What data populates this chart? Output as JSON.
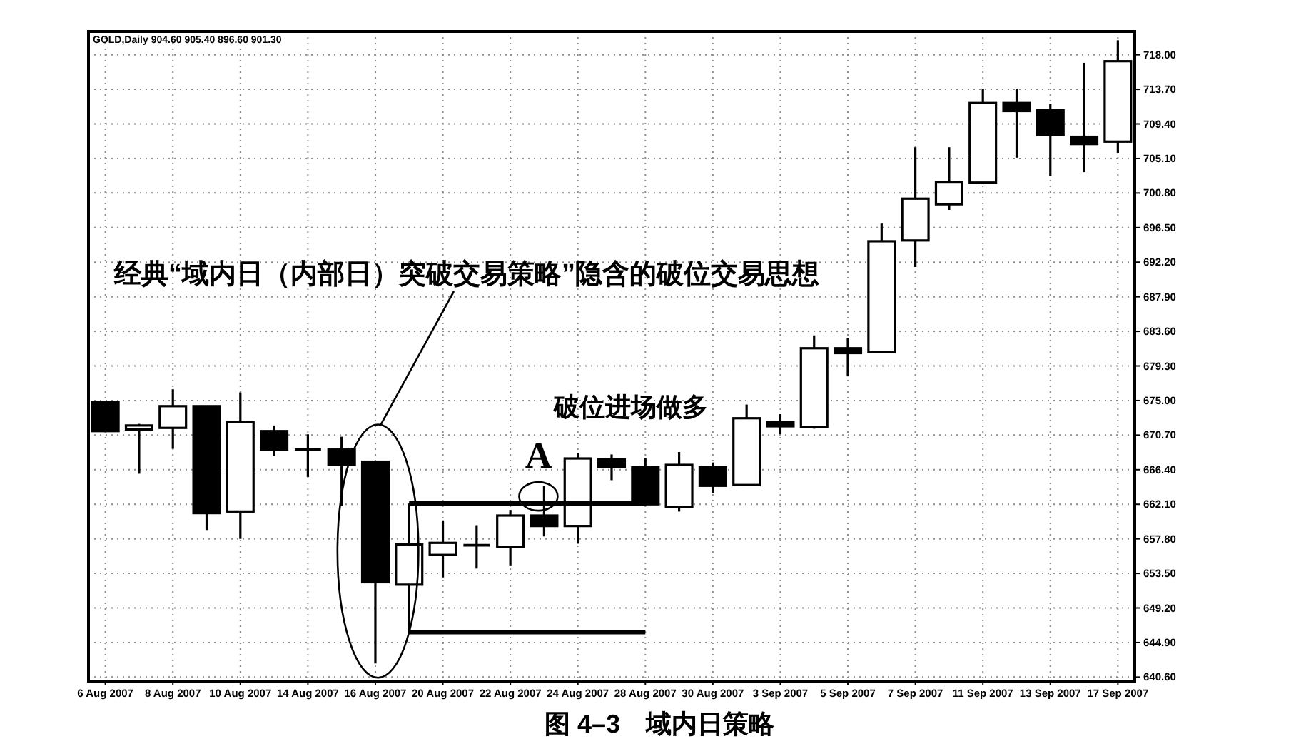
{
  "chart_data": {
    "type": "candlestick",
    "title": "图 4–3　域内日策略",
    "categories": [
      "6 Aug 2007",
      null,
      "8 Aug 2007",
      null,
      "10 Aug 2007",
      null,
      "14 Aug 2007",
      null,
      "16 Aug 2007",
      null,
      "20 Aug 2007",
      null,
      "22 Aug 2007",
      null,
      "24 Aug 2007",
      null,
      "28 Aug 2007",
      null,
      "30 Aug 2007",
      null,
      "3 Sep 2007",
      null,
      "5 Sep 2007",
      null,
      "7 Sep 2007",
      null,
      "11 Sep 2007",
      null,
      "13 Sep 2007",
      null,
      "17 Sep 2007"
    ],
    "ohlc": [
      [
        674.8,
        674.8,
        671.2,
        671.2
      ],
      [
        671.4,
        672.1,
        665.9,
        671.9
      ],
      [
        671.6,
        676.4,
        669.0,
        674.3
      ],
      [
        674.3,
        674.3,
        658.9,
        661.0
      ],
      [
        661.2,
        676.0,
        657.8,
        672.3
      ],
      [
        671.2,
        671.9,
        668.1,
        668.9
      ],
      [
        668.9,
        670.8,
        665.5,
        668.9
      ],
      [
        668.9,
        670.5,
        661.9,
        667.0
      ],
      [
        667.4,
        667.4,
        642.3,
        652.4
      ],
      [
        652.1,
        662.2,
        646.2,
        657.1
      ],
      [
        655.8,
        660.1,
        653.0,
        657.3
      ],
      [
        657.0,
        659.5,
        654.1,
        657.0
      ],
      [
        656.8,
        661.4,
        654.5,
        660.7
      ],
      [
        660.7,
        664.4,
        658.1,
        659.4
      ],
      [
        659.4,
        668.5,
        657.2,
        667.8
      ],
      [
        667.7,
        668.3,
        665.1,
        666.7
      ],
      [
        666.7,
        667.8,
        661.9,
        662.1
      ],
      [
        661.8,
        668.6,
        661.2,
        667.0
      ],
      [
        666.7,
        667.3,
        663.5,
        664.4
      ],
      [
        664.5,
        674.5,
        664.4,
        672.8
      ],
      [
        672.3,
        673.3,
        670.8,
        671.8
      ],
      [
        671.7,
        683.1,
        671.5,
        681.5
      ],
      [
        681.5,
        682.8,
        678.0,
        680.9
      ],
      [
        681.0,
        697.0,
        680.9,
        694.8
      ],
      [
        694.9,
        706.5,
        691.6,
        700.1
      ],
      [
        699.4,
        706.5,
        698.7,
        702.2
      ],
      [
        702.1,
        713.8,
        701.9,
        712.0
      ],
      [
        712.0,
        713.8,
        705.2,
        711.0
      ],
      [
        711.1,
        711.9,
        702.9,
        708.0
      ],
      [
        707.8,
        717.0,
        703.4,
        706.9
      ],
      [
        707.2,
        719.8,
        705.8,
        717.2
      ]
    ],
    "colors": [
      "#000000",
      "#ffffff",
      "#ffffff",
      "#000000",
      "#ffffff",
      "#000000",
      "#000000",
      "#000000",
      "#000000",
      "#ffffff",
      "#ffffff",
      "#000000",
      "#ffffff",
      "#000000",
      "#ffffff",
      "#000000",
      "#000000",
      "#ffffff",
      "#000000",
      "#ffffff",
      "#000000",
      "#ffffff",
      "#000000",
      "#ffffff",
      "#ffffff",
      "#ffffff",
      "#ffffff",
      "#000000",
      "#000000",
      "#000000",
      "#ffffff"
    ],
    "series": [
      {
        "type": "line",
        "color": "#000000",
        "values": [
          null,
          null,
          null,
          null,
          null,
          null,
          null,
          null,
          null,
          662.2,
          662.2,
          662.2,
          662.2,
          662.2,
          662.2,
          662.2,
          662.2,
          null,
          null,
          null,
          null,
          null,
          null,
          null,
          null,
          null,
          null,
          null,
          null,
          null,
          null
        ]
      },
      {
        "type": "line",
        "color": "#000000",
        "values": [
          null,
          null,
          null,
          null,
          null,
          null,
          null,
          null,
          null,
          646.2,
          646.2,
          646.2,
          646.2,
          646.2,
          646.2,
          646.2,
          646.2,
          null,
          null,
          null,
          null,
          null,
          null,
          null,
          null,
          null,
          null,
          null,
          null,
          null,
          null
        ]
      }
    ],
    "ylim": [
      640.1,
      720.9
    ],
    "yticks": [
      {
        "value": 640.6,
        "label": "640.60"
      },
      {
        "value": 644.9,
        "label": "644.90"
      },
      {
        "value": 649.2,
        "label": "649.20"
      },
      {
        "value": 653.5,
        "label": "653.50"
      },
      {
        "value": 657.8,
        "label": "657.80"
      },
      {
        "value": 662.1,
        "label": "662.10"
      },
      {
        "value": 666.4,
        "label": "666.40"
      },
      {
        "value": 670.7,
        "label": "670.70"
      },
      {
        "value": 675.0,
        "label": "675.00"
      },
      {
        "value": 679.3,
        "label": "679.30"
      },
      {
        "value": 683.6,
        "label": "683.60"
      },
      {
        "value": 687.9,
        "label": "687.90"
      },
      {
        "value": 692.2,
        "label": "692.20"
      },
      {
        "value": 696.5,
        "label": "696.50"
      },
      {
        "value": 700.8,
        "label": "700.80"
      },
      {
        "value": 705.1,
        "label": "705.10"
      },
      {
        "value": 709.4,
        "label": "709.40"
      },
      {
        "value": 713.7,
        "label": "713.70"
      },
      {
        "value": 718.0,
        "label": "718.00"
      }
    ],
    "grid": true,
    "annotations": [
      "GOLD,Daily  904.60 905.40 896.60 901.30",
      "经典“域内日（内部日）突破交易策略”隐含的破位交易思想",
      "A",
      "破位进场做多"
    ]
  }
}
